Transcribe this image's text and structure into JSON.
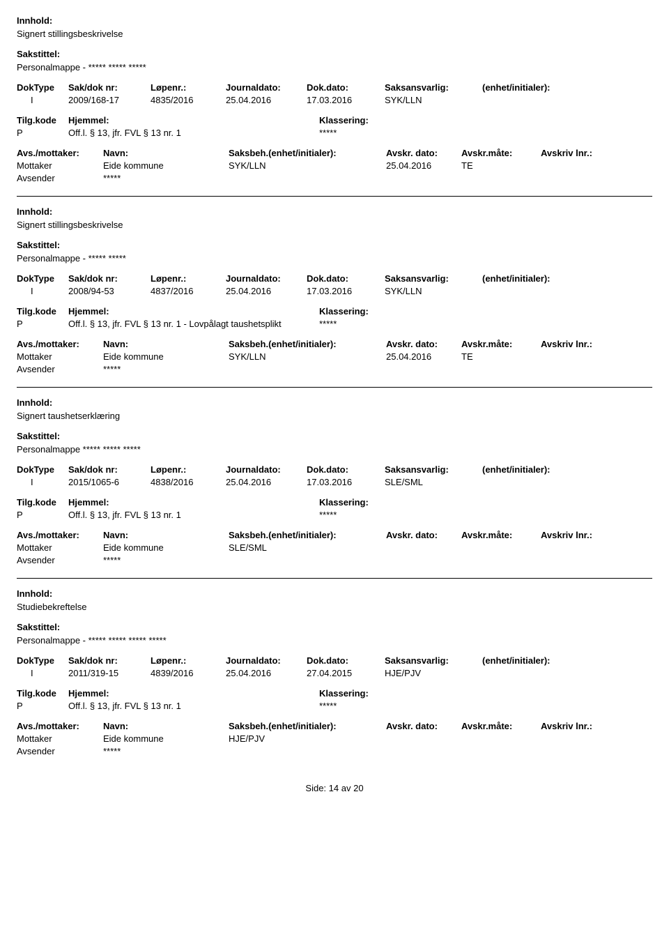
{
  "labels": {
    "innhold": "Innhold:",
    "sakstittel": "Sakstittel:",
    "doktype": "DokType",
    "sakdok": "Sak/dok nr:",
    "lopenr": "Løpenr.:",
    "journaldato": "Journaldato:",
    "dokdato": "Dok.dato:",
    "saksansvarlig": "Saksansvarlig:",
    "enhet": "(enhet/initialer):",
    "tilgkode": "Tilg.kode",
    "hjemmel": "Hjemmel:",
    "klassering": "Klassering:",
    "avsmot": "Avs./mottaker:",
    "navn": "Navn:",
    "saksbeh": "Saksbeh.(enhet/initialer):",
    "avskrdato": "Avskr. dato:",
    "avskrmate": "Avskr.måte:",
    "avskrlnr": "Avskriv lnr.:",
    "mottaker": "Mottaker",
    "avsender": "Avsender"
  },
  "entries": [
    {
      "innhold": "Signert stillingsbeskrivelse",
      "sakstittel": "Personalmappe - ***** ***** *****",
      "doktype": "I",
      "sakdok": "2009/168-17",
      "lopenr": "4835/2016",
      "journaldato": "25.04.2016",
      "dokdato": "17.03.2016",
      "saksansvarlig": "SYK/LLN",
      "enhet": "",
      "tilgkode": "P",
      "hjemmel": "Off.l. § 13, jfr. FVL § 13 nr. 1",
      "klassering": "*****",
      "mottaker_navn": "Eide kommune",
      "mottaker_sbeh": "SYK/LLN",
      "mottaker_adato": "25.04.2016",
      "mottaker_amate": "TE",
      "avsender_navn": "*****"
    },
    {
      "innhold": "Signert stillingsbeskrivelse",
      "sakstittel": "Personalmappe -  ***** *****",
      "doktype": "I",
      "sakdok": "2008/94-53",
      "lopenr": "4837/2016",
      "journaldato": "25.04.2016",
      "dokdato": "17.03.2016",
      "saksansvarlig": "SYK/LLN",
      "enhet": "",
      "tilgkode": "P",
      "hjemmel": "Off.l. § 13, jfr. FVL § 13 nr. 1 - Lovpålagt taushetsplikt",
      "klassering": "*****",
      "mottaker_navn": "Eide kommune",
      "mottaker_sbeh": "SYK/LLN",
      "mottaker_adato": "25.04.2016",
      "mottaker_amate": "TE",
      "avsender_navn": "*****"
    },
    {
      "innhold": "Signert taushetserklæring",
      "sakstittel": "Personalmappe  ***** ***** *****",
      "doktype": "I",
      "sakdok": "2015/1065-6",
      "lopenr": "4838/2016",
      "journaldato": "25.04.2016",
      "dokdato": "17.03.2016",
      "saksansvarlig": "SLE/SML",
      "enhet": "",
      "tilgkode": "P",
      "hjemmel": "Off.l. § 13, jfr. FVL § 13 nr. 1",
      "klassering": "*****",
      "mottaker_navn": "Eide kommune",
      "mottaker_sbeh": "SLE/SML",
      "mottaker_adato": "",
      "mottaker_amate": "",
      "avsender_navn": "*****"
    },
    {
      "innhold": "Studiebekreftelse",
      "sakstittel": "Personalmappe - ***** ***** ***** *****",
      "doktype": "I",
      "sakdok": "2011/319-15",
      "lopenr": "4839/2016",
      "journaldato": "25.04.2016",
      "dokdato": "27.04.2015",
      "saksansvarlig": "HJE/PJV",
      "enhet": "",
      "tilgkode": "P",
      "hjemmel": "Off.l. § 13, jfr. FVL § 13 nr. 1",
      "klassering": "*****",
      "mottaker_navn": "Eide kommune",
      "mottaker_sbeh": "HJE/PJV",
      "mottaker_adato": "",
      "mottaker_amate": "",
      "avsender_navn": "*****"
    }
  ],
  "footer": {
    "side_label": "Side:",
    "page": "14",
    "av": "av",
    "total": "20"
  }
}
